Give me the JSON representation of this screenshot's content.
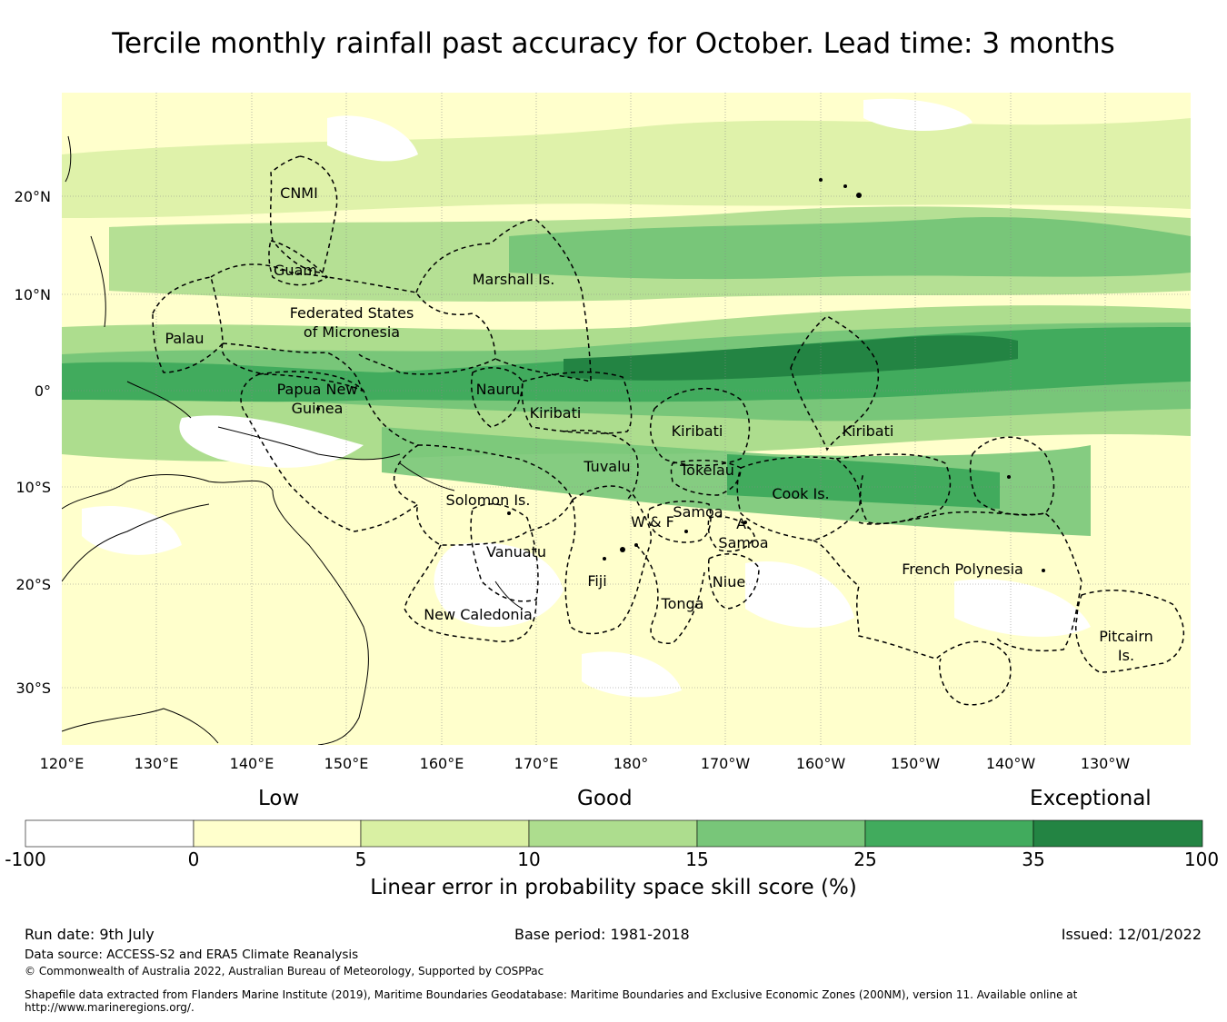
{
  "title": "Tercile monthly rainfall past accuracy for October. Lead time: 3 months",
  "map": {
    "lon_labels": [
      "120°E",
      "130°E",
      "140°E",
      "150°E",
      "160°E",
      "170°E",
      "180°",
      "170°W",
      "160°W",
      "150°W",
      "140°W",
      "130°W"
    ],
    "lat_labels": [
      "20°N",
      "10°N",
      "0°",
      "10°S",
      "20°S",
      "30°S"
    ],
    "regions": [
      "CNMI",
      "Guam",
      "Marshall Is.",
      "Federated States",
      "of Micronesia",
      "Palau",
      "Papua New",
      "Guinea",
      "Nauru",
      "Kiribati",
      "Kiribati",
      "Kiribati",
      "Tuvalu",
      "Tokelau",
      "Cook Is.",
      "Solomon Is.",
      "Samoa",
      "W & F",
      "A.",
      "Samoa",
      "Vanuatu",
      "Fiji",
      "Niue",
      "Tonga",
      "French Polynesia",
      "New Caledonia",
      "Pitcairn",
      "Is."
    ]
  },
  "legend": {
    "categories": {
      "low": "Low",
      "good": "Good",
      "exceptional": "Exceptional"
    },
    "ticks": [
      "-100",
      "0",
      "5",
      "10",
      "15",
      "25",
      "35",
      "100"
    ],
    "colors": [
      "#ffffff",
      "#ffffcc",
      "#d9f0a3",
      "#addd8e",
      "#78c679",
      "#41ab5d",
      "#238443"
    ],
    "title": "Linear error in probability space skill score (%)"
  },
  "footer": {
    "run_date": "Run date: 9th July",
    "base_period": "Base period: 1981-2018",
    "issued": "Issued: 12/01/2022",
    "data_source": "Data source: ACCESS-S2 and ERA5 Climate Reanalysis",
    "copyright": "© Commonwealth of Australia 2022, Australian Bureau of Meteorology, Supported by COSPPac",
    "shapefile_line1": "Shapefile data extracted from Flanders Marine Institute (2019), Maritime Boundaries Geodatabase: Maritime Boundaries and Exclusive Economic Zones (200NM), version 11. Available online at",
    "shapefile_line2": "http://www.marineregions.org/."
  }
}
